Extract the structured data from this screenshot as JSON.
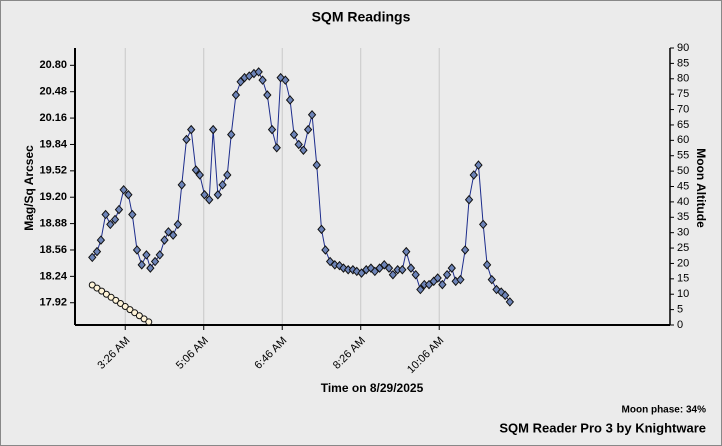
{
  "chart_data": {
    "type": "line",
    "title": "SQM Readings",
    "y_label": "Mag/Sq Arcsec",
    "y2_label": "Moon Altitude",
    "x_label": "Time on 8/29/2025",
    "annotations": [
      "Moon phase: 34%",
      "SQM Reader Pro 3 by Knightware"
    ],
    "xlim": [
      142,
      900
    ],
    "xticks": [
      {
        "value": 206,
        "label": "3:26 AM"
      },
      {
        "value": 306,
        "label": "5:06 AM"
      },
      {
        "value": 406,
        "label": "6:46 AM"
      },
      {
        "value": 506,
        "label": "8:26 AM"
      },
      {
        "value": 606,
        "label": "10:06 AM"
      }
    ],
    "ylim": [
      17.65,
      21.01
    ],
    "yticks": [
      17.92,
      18.24,
      18.56,
      18.88,
      {
        "value": 19.2,
        "label": "19.20"
      },
      19.52,
      19.84,
      20.16,
      20.48,
      {
        "value": 20.8,
        "label": "20.80"
      }
    ],
    "y2lim": [
      0,
      90
    ],
    "y2ticks": [
      0,
      5,
      10,
      15,
      20,
      25,
      30,
      35,
      40,
      45,
      50,
      55,
      60,
      65,
      70,
      75,
      80,
      85,
      90
    ],
    "grid": true,
    "series": [
      {
        "color": "#1c2c8c",
        "marker": "diamond",
        "marker_color": "#6d84b8",
        "x": [
          164,
          170,
          175,
          181,
          187,
          193,
          198,
          204,
          210,
          215,
          221,
          227,
          233,
          238,
          244,
          250,
          256,
          261,
          267,
          273,
          278,
          284,
          290,
          296,
          301,
          307,
          313,
          318,
          324,
          330,
          336,
          341,
          347,
          353,
          358,
          364,
          370,
          376,
          381,
          387,
          393,
          399,
          404,
          410,
          416,
          421,
          427,
          433,
          439,
          444,
          450,
          456,
          461,
          467,
          473,
          479,
          484,
          490,
          496,
          501,
          507,
          513,
          519,
          524,
          530,
          536,
          542,
          547,
          553,
          559,
          564,
          570,
          576,
          582,
          587,
          593,
          599,
          604,
          610,
          616,
          622,
          627,
          633,
          639,
          644,
          650,
          656,
          662,
          667,
          673,
          679,
          685,
          690,
          696
        ],
        "values": [
          18.47,
          18.54,
          18.68,
          18.99,
          18.87,
          18.93,
          19.05,
          19.29,
          19.23,
          18.99,
          18.56,
          18.38,
          18.5,
          18.34,
          18.42,
          18.5,
          18.68,
          18.78,
          18.74,
          18.87,
          19.35,
          19.9,
          20.02,
          19.53,
          19.47,
          19.23,
          19.17,
          20.02,
          19.23,
          19.35,
          19.47,
          19.96,
          20.44,
          20.6,
          20.65,
          20.67,
          20.7,
          20.72,
          20.62,
          20.44,
          20.02,
          19.8,
          20.65,
          20.62,
          20.38,
          19.96,
          19.84,
          19.77,
          20.02,
          20.2,
          19.59,
          18.81,
          18.56,
          18.42,
          18.38,
          18.37,
          18.34,
          18.32,
          18.32,
          18.3,
          18.28,
          18.32,
          18.34,
          18.3,
          18.34,
          18.38,
          18.34,
          18.26,
          18.32,
          18.32,
          18.54,
          18.34,
          18.26,
          18.08,
          18.14,
          18.14,
          18.18,
          18.22,
          18.14,
          18.26,
          18.34,
          18.18,
          18.2,
          18.56,
          19.17,
          19.47,
          19.59,
          18.87,
          18.38,
          18.2,
          18.08,
          18.05,
          18.01,
          17.93
        ]
      },
      {
        "color": "#000000",
        "marker": "circle",
        "marker_color": "#fff4d8",
        "axis": "y2",
        "x": [
          164,
          170,
          176,
          182,
          188,
          194,
          200,
          206,
          212,
          218,
          224,
          230,
          236
        ],
        "values": [
          13,
          12,
          11,
          10,
          9,
          8,
          7,
          6,
          5,
          4,
          3,
          2,
          1
        ]
      }
    ]
  }
}
